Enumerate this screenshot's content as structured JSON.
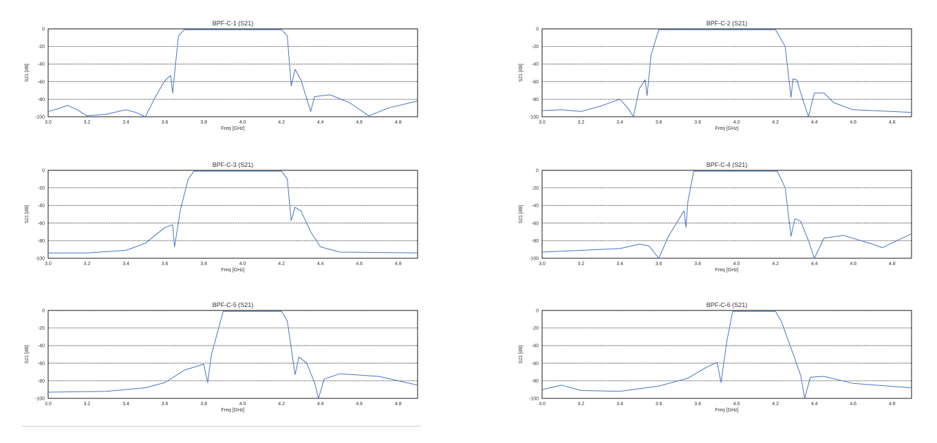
{
  "colors": {
    "trace": "#4472C4",
    "grid": "#000000",
    "text": "#333333"
  },
  "chart_data": [
    {
      "type": "line",
      "title": "BPF-C-1 (S21)",
      "xlabel": "Freq [GHz]",
      "ylabel": "S21 [dB]",
      "xlim": [
        3.0,
        4.9
      ],
      "ylim": [
        -100,
        0
      ],
      "xticks": [
        "3.0",
        "3.2",
        "3.4",
        "3.6",
        "3.8",
        "4.0",
        "4.2",
        "4.4",
        "4.6",
        "4.8"
      ],
      "yticks": [
        "0",
        "-20",
        "-40",
        "-60",
        "-80",
        "-100"
      ],
      "grid": true,
      "series": [
        {
          "x": [
            3.0,
            3.05,
            3.1,
            3.15,
            3.2,
            3.3,
            3.4,
            3.45,
            3.5,
            3.55,
            3.6,
            3.63,
            3.64,
            3.67,
            3.7,
            4.2,
            4.23,
            4.25,
            4.27,
            4.3,
            4.35,
            4.37,
            4.45,
            4.55,
            4.65,
            4.75,
            4.9
          ],
          "y": [
            -94,
            -91,
            -87,
            -92,
            -99,
            -97,
            -92,
            -95,
            -100,
            -78,
            -59,
            -53,
            -73,
            -8,
            -1,
            -1,
            -8,
            -65,
            -46,
            -58,
            -94,
            -77,
            -75,
            -84,
            -99,
            -90,
            -82
          ]
        }
      ]
    },
    {
      "type": "line",
      "title": "BPF-C-2 (S21)",
      "xlabel": "Freq [GHz]",
      "ylabel": "S21 [dB]",
      "xlim": [
        3.0,
        4.9
      ],
      "ylim": [
        -100,
        0
      ],
      "xticks": [
        "3.0",
        "3.2",
        "3.4",
        "3.6",
        "3.8",
        "4.0",
        "4.2",
        "4.4",
        "4.6",
        "4.8"
      ],
      "yticks": [
        "0",
        "-20",
        "-40",
        "-60",
        "-80",
        "-100"
      ],
      "grid": true,
      "series": [
        {
          "x": [
            3.0,
            3.1,
            3.2,
            3.3,
            3.4,
            3.44,
            3.47,
            3.5,
            3.53,
            3.54,
            3.56,
            3.6,
            4.2,
            4.25,
            4.28,
            4.29,
            4.31,
            4.34,
            4.37,
            4.4,
            4.45,
            4.5,
            4.6,
            4.7,
            4.9
          ],
          "y": [
            -93,
            -92,
            -94,
            -88,
            -80,
            -90,
            -100,
            -68,
            -58,
            -76,
            -30,
            -1,
            -1,
            -20,
            -78,
            -57,
            -58,
            -80,
            -100,
            -73,
            -73,
            -84,
            -92,
            -93,
            -95
          ]
        }
      ]
    },
    {
      "type": "line",
      "title": "BPF-C-3 (S21)",
      "xlabel": "Freq [GHz]",
      "ylabel": "S21 [dB]",
      "xlim": [
        3.0,
        4.9
      ],
      "ylim": [
        -100,
        0
      ],
      "xticks": [
        "3.0",
        "3.2",
        "3.4",
        "3.6",
        "3.8",
        "4.0",
        "4.2",
        "4.4",
        "4.6",
        "4.8"
      ],
      "yticks": [
        "0",
        "-20",
        "-40",
        "-60",
        "-80",
        "-100"
      ],
      "grid": true,
      "series": [
        {
          "x": [
            3.0,
            3.2,
            3.4,
            3.5,
            3.6,
            3.64,
            3.65,
            3.68,
            3.72,
            3.75,
            4.2,
            4.23,
            4.25,
            4.27,
            4.3,
            4.35,
            4.4,
            4.5,
            4.9
          ],
          "y": [
            -94,
            -94,
            -91,
            -83,
            -65,
            -62,
            -87,
            -45,
            -10,
            -1,
            -1,
            -10,
            -57,
            -42,
            -46,
            -70,
            -87,
            -93,
            -94
          ]
        }
      ]
    },
    {
      "type": "line",
      "title": "BPF-C-4 (S21)",
      "xlabel": "Freq [GHz]",
      "ylabel": "S21 [dB]",
      "xlim": [
        3.0,
        4.9
      ],
      "ylim": [
        -100,
        0
      ],
      "xticks": [
        "3.0",
        "3.2",
        "3.4",
        "3.6",
        "3.8",
        "4.0",
        "4.2",
        "4.4",
        "4.6",
        "4.8"
      ],
      "yticks": [
        "0",
        "-20",
        "-40",
        "-60",
        "-80",
        "-100"
      ],
      "grid": true,
      "series": [
        {
          "x": [
            3.0,
            3.2,
            3.4,
            3.5,
            3.55,
            3.6,
            3.65,
            3.73,
            3.74,
            3.75,
            3.78,
            4.21,
            4.25,
            4.28,
            4.3,
            4.33,
            4.37,
            4.4,
            4.45,
            4.55,
            4.7,
            4.75,
            4.9
          ],
          "y": [
            -93,
            -91,
            -89,
            -84,
            -86,
            -100,
            -75,
            -46,
            -65,
            -35,
            -1,
            -1,
            -20,
            -75,
            -55,
            -58,
            -80,
            -100,
            -77,
            -74,
            -84,
            -88,
            -72
          ]
        }
      ]
    },
    {
      "type": "line",
      "title": "BPF-C-5 (S21)",
      "xlabel": "Freq [GHz]",
      "ylabel": "S21 [dB]",
      "xlim": [
        3.0,
        4.9
      ],
      "ylim": [
        -100,
        0
      ],
      "xticks": [
        "3.0",
        "3.2",
        "3.4",
        "3.6",
        "3.8",
        "4.0",
        "4.2",
        "4.4",
        "4.6",
        "4.8"
      ],
      "yticks": [
        "0",
        "-20",
        "-40",
        "-60",
        "-80",
        "-100"
      ],
      "grid": true,
      "series": [
        {
          "x": [
            3.0,
            3.3,
            3.5,
            3.6,
            3.7,
            3.8,
            3.82,
            3.84,
            3.9,
            4.2,
            4.23,
            4.27,
            4.29,
            4.33,
            4.37,
            4.39,
            4.42,
            4.5,
            4.7,
            4.9
          ],
          "y": [
            -93,
            -92,
            -88,
            -82,
            -68,
            -61,
            -82,
            -50,
            -1,
            -1,
            -12,
            -73,
            -53,
            -60,
            -82,
            -100,
            -78,
            -72,
            -75,
            -85
          ]
        }
      ]
    },
    {
      "type": "line",
      "title": "BPF-C-6 (S21)",
      "xlabel": "Freq [GHz]",
      "ylabel": "S21 [dB]",
      "xlim": [
        3.0,
        4.9
      ],
      "ylim": [
        -100,
        0
      ],
      "xticks": [
        "3.0",
        "3.2",
        "3.4",
        "3.6",
        "3.8",
        "4.0",
        "4.2",
        "4.4",
        "4.6",
        "4.8"
      ],
      "yticks": [
        "0",
        "-20",
        "-40",
        "-60",
        "-80",
        "-100"
      ],
      "grid": true,
      "series": [
        {
          "x": [
            3.0,
            3.1,
            3.2,
            3.4,
            3.6,
            3.75,
            3.85,
            3.9,
            3.92,
            3.95,
            3.98,
            4.2,
            4.23,
            4.3,
            4.33,
            4.35,
            4.38,
            4.45,
            4.6,
            4.9
          ],
          "y": [
            -90,
            -85,
            -91,
            -92,
            -86,
            -77,
            -64,
            -59,
            -82,
            -35,
            -1,
            -1,
            -12,
            -55,
            -74,
            -100,
            -76,
            -75,
            -83,
            -88
          ]
        }
      ]
    }
  ]
}
